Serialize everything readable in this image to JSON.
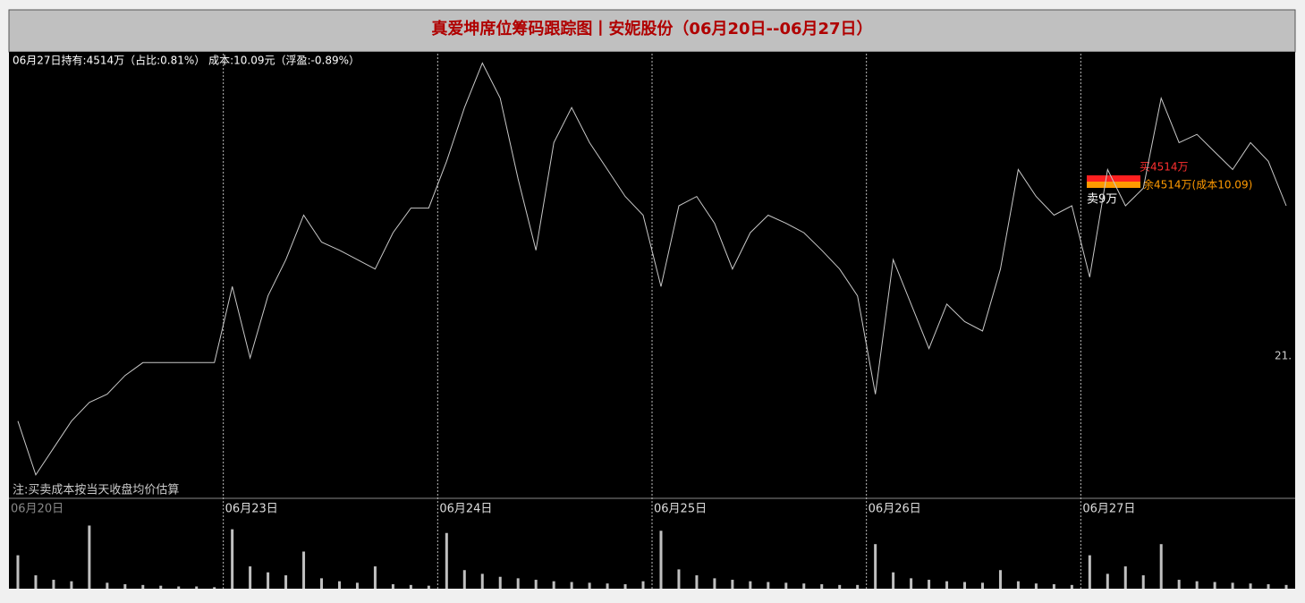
{
  "chart_data": {
    "type": "line",
    "title": "真爱坤席位筹码跟踪图丨安妮股份（06月20日--06月27日）",
    "info": "06月27日持有:4514万（占比:0.81%） 成本:10.09元（浮盈:-0.89%）",
    "note": "注:买卖成本按当天收盘均价估算",
    "annotations": {
      "buy": "买4514万",
      "remain": "余4514万(成本10.09)",
      "sell": "卖9万",
      "edge": "21."
    },
    "color": "#c8c8c8",
    "ylim": [
      8.6,
      12.4
    ],
    "volume_ylim": [
      0,
      100
    ],
    "days": [
      {
        "date": "06月20日",
        "prices": [
          9.26,
          8.8,
          9.03,
          9.26,
          9.42,
          9.49,
          9.65,
          9.76,
          9.76,
          9.76,
          9.76,
          9.76
        ],
        "volumes": [
          45,
          18,
          12,
          10,
          85,
          8,
          6,
          5,
          4,
          3,
          3,
          2
        ]
      },
      {
        "date": "06月23日",
        "prices": [
          10.41,
          9.8,
          10.33,
          10.64,
          11.02,
          10.79,
          10.72,
          10.64,
          10.56,
          10.87,
          11.08,
          11.08
        ],
        "volumes": [
          80,
          30,
          22,
          18,
          50,
          14,
          10,
          8,
          30,
          6,
          5,
          4
        ]
      },
      {
        "date": "06月24日",
        "prices": [
          11.48,
          11.94,
          12.32,
          12.02,
          11.33,
          10.72,
          11.64,
          11.94,
          11.64,
          11.41,
          11.18,
          11.02
        ],
        "volumes": [
          75,
          25,
          20,
          16,
          14,
          12,
          10,
          9,
          8,
          7,
          6,
          10
        ]
      },
      {
        "date": "06月25日",
        "prices": [
          10.41,
          11.1,
          11.18,
          10.95,
          10.56,
          10.87,
          11.02,
          10.95,
          10.87,
          10.72,
          10.56,
          10.33
        ],
        "volumes": [
          78,
          26,
          18,
          14,
          12,
          10,
          9,
          8,
          7,
          6,
          5,
          5
        ]
      },
      {
        "date": "06月26日",
        "prices": [
          9.49,
          10.64,
          10.26,
          9.88,
          10.26,
          10.11,
          10.03,
          10.56,
          11.41,
          11.18,
          11.02,
          11.1
        ],
        "volumes": [
          60,
          22,
          14,
          12,
          10,
          9,
          8,
          25,
          10,
          7,
          6,
          5
        ]
      },
      {
        "date": "06月27日",
        "prices": [
          10.49,
          11.41,
          11.1,
          11.25,
          12.02,
          11.64,
          11.71,
          11.56,
          11.41,
          11.64,
          11.48,
          11.1
        ],
        "volumes": [
          45,
          20,
          30,
          18,
          60,
          12,
          10,
          9,
          8,
          7,
          6,
          5
        ]
      }
    ]
  }
}
